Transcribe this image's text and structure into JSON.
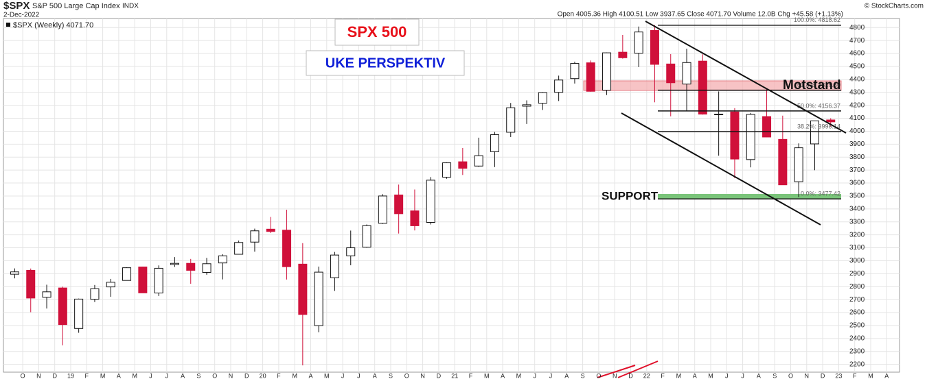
{
  "chart_data": {
    "type": "candlestick",
    "title": "$SPX",
    "subtitle": "S&P 500 Large Cap Index",
    "exchange": "INDX",
    "date": "2-Dec-2022",
    "quote_line": "Open 4005.36 High 4100.51 Low 3937.65 Close 4071.70 Volume 12.0B Chg +45.58 (+1.13%)",
    "credit": "© StockCharts.com",
    "legend": "$SPX (Weekly) 4071.70",
    "banner_title": "SPX 500",
    "banner_subtitle": "UKE PERSPEKTIV",
    "resistance_label": "Motstand",
    "support_label": "SUPPORT",
    "up_color": "#ffffff",
    "down_color": "#d0103a",
    "categories": [
      null,
      "O",
      "N",
      "D",
      "19",
      "F",
      "M",
      "A",
      "M",
      "J",
      "J",
      "A",
      "S",
      "O",
      "N",
      "D",
      "20",
      "F",
      "M",
      "A",
      "M",
      "J",
      "J",
      "A",
      "S",
      "O",
      "N",
      "D",
      "21",
      "F",
      "M",
      "A",
      "M",
      "J",
      "J",
      "A",
      "S",
      "O",
      "N",
      "D",
      "22",
      "F",
      "M",
      "A",
      "M",
      "J",
      "J",
      "A",
      "S",
      "O",
      "N",
      "D",
      "23",
      "F",
      "M",
      "A"
    ],
    "open": [
      2896,
      2926,
      2718,
      2790,
      2477,
      2703,
      2798,
      2848,
      2952,
      2751,
      2971,
      2980,
      2910,
      2983,
      3050,
      3144,
      3244,
      3236,
      2974,
      2499,
      2869,
      3038,
      3105,
      3289,
      3508,
      3385,
      3296,
      3645,
      3764,
      3731,
      3842,
      3992,
      4193,
      4216,
      4300,
      4406,
      4528,
      4317,
      4610,
      4602,
      4778,
      4519,
      4364,
      4541,
      4131,
      4149,
      3781,
      4113,
      3937,
      3610,
      3902,
      4087,
      null,
      null,
      null,
      null
    ],
    "high": [
      2941,
      2940,
      2815,
      2800,
      2708,
      2813,
      2860,
      2949,
      2955,
      2964,
      3028,
      3014,
      3022,
      3050,
      3156,
      3248,
      3338,
      3394,
      3136,
      2955,
      3068,
      3233,
      3280,
      3514,
      3588,
      3550,
      3646,
      3760,
      3870,
      3950,
      3994,
      4218,
      4238,
      4302,
      4429,
      4537,
      4546,
      4608,
      4743,
      4808,
      4819,
      4595,
      4637,
      4594,
      4307,
      4178,
      4141,
      4325,
      4120,
      3906,
      4080,
      4100,
      null,
      null,
      null,
      null
    ],
    "low": [
      2864,
      2603,
      2631,
      2347,
      2444,
      2681,
      2722,
      2848,
      2751,
      2728,
      2952,
      2822,
      2892,
      2856,
      3050,
      3070,
      3214,
      2855,
      2192,
      2448,
      2767,
      2965,
      3101,
      3284,
      3210,
      3234,
      3280,
      3633,
      3662,
      3725,
      3723,
      3955,
      4056,
      4164,
      4233,
      4368,
      4305,
      4279,
      4560,
      4495,
      4223,
      4115,
      4157,
      4128,
      3811,
      3637,
      3721,
      3954,
      3585,
      3491,
      3699,
      4034,
      null,
      null,
      null,
      null
    ],
    "close": [
      2914,
      2712,
      2760,
      2507,
      2704,
      2784,
      2834,
      2946,
      2752,
      2942,
      2980,
      2926,
      2977,
      3038,
      3141,
      3231,
      3226,
      2954,
      2585,
      2912,
      3044,
      3100,
      3271,
      3500,
      3363,
      3270,
      3622,
      3756,
      3714,
      3811,
      3973,
      4181,
      4204,
      4298,
      4395,
      4523,
      4308,
      4605,
      4567,
      4766,
      4516,
      4374,
      4530,
      4132,
      4132,
      3785,
      4130,
      3955,
      3586,
      3872,
      4080,
      4072,
      null,
      null,
      null,
      null
    ],
    "ylim": [
      2140,
      4870
    ],
    "yticks": [
      2200,
      2300,
      2400,
      2500,
      2600,
      2700,
      2800,
      2900,
      3000,
      3100,
      3200,
      3300,
      3400,
      3500,
      3600,
      3700,
      3800,
      3900,
      4000,
      4100,
      4200,
      4300,
      4400,
      4500,
      4600,
      4700,
      4800
    ],
    "grid": true,
    "annotations": [
      {
        "label": "100.0%: 4818.62",
        "value": 4818.62
      },
      {
        "label": "61.8%: 4316.60",
        "value": 4316.6
      },
      {
        "label": "50.0%: 4156.37",
        "value": 4156.37
      },
      {
        "label": "38.2%: 3996.14",
        "value": 3996.14
      },
      {
        "label": "0.0%: 3477.42",
        "value": 3477.42
      }
    ]
  }
}
